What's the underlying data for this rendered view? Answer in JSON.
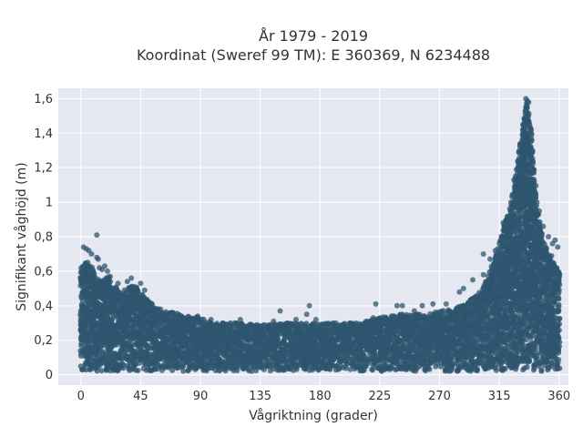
{
  "chart_data": {
    "type": "scatter",
    "title": [
      "År 1979 - 2019",
      "Koordinat (Sweref 99 TM): E 360369, N 6234488"
    ],
    "xlabel": "Vågriktning (grader)",
    "ylabel": "Signifikant våghöjd (m)",
    "xlim": [
      -17,
      367
    ],
    "ylim": [
      -0.06,
      1.66
    ],
    "xticks": [
      0,
      45,
      90,
      135,
      180,
      225,
      270,
      315,
      360
    ],
    "xtick_labels": [
      "0",
      "45",
      "90",
      "135",
      "180",
      "225",
      "270",
      "315",
      "360"
    ],
    "yticks": [
      0,
      0.2,
      0.4,
      0.6,
      0.8,
      1.0,
      1.2,
      1.4,
      1.6
    ],
    "ytick_labels": [
      "0",
      "0,2",
      "0,4",
      "0,6",
      "0,8",
      "1",
      "1,2",
      "1,4",
      "1,6"
    ],
    "grid": true,
    "marker_color": "#2f5570",
    "background_color": "#e5e8f0",
    "envelope": {
      "direction": [
        0,
        5,
        10,
        15,
        20,
        25,
        30,
        35,
        40,
        45,
        50,
        55,
        60,
        70,
        80,
        90,
        100,
        110,
        120,
        130,
        140,
        150,
        160,
        170,
        180,
        190,
        200,
        210,
        220,
        230,
        240,
        250,
        260,
        270,
        280,
        290,
        300,
        305,
        310,
        315,
        320,
        325,
        330,
        333,
        336,
        338,
        340,
        343,
        346,
        350,
        355,
        360
      ],
      "max_height": [
        0.62,
        0.66,
        0.6,
        0.55,
        0.58,
        0.52,
        0.48,
        0.5,
        0.52,
        0.48,
        0.44,
        0.4,
        0.37,
        0.36,
        0.34,
        0.33,
        0.3,
        0.3,
        0.3,
        0.29,
        0.29,
        0.3,
        0.3,
        0.3,
        0.3,
        0.3,
        0.3,
        0.3,
        0.32,
        0.34,
        0.35,
        0.35,
        0.36,
        0.37,
        0.38,
        0.42,
        0.48,
        0.55,
        0.65,
        0.75,
        0.9,
        1.05,
        1.3,
        1.45,
        1.6,
        1.5,
        1.3,
        1.0,
        0.85,
        0.75,
        0.68,
        0.6
      ]
    },
    "outliers": [
      {
        "x": 2,
        "y": 0.74
      },
      {
        "x": 4,
        "y": 0.73
      },
      {
        "x": 6,
        "y": 0.72
      },
      {
        "x": 8,
        "y": 0.7
      },
      {
        "x": 12,
        "y": 0.68
      },
      {
        "x": 13,
        "y": 0.67
      },
      {
        "x": 14,
        "y": 0.62
      },
      {
        "x": 16,
        "y": 0.61
      },
      {
        "x": 18,
        "y": 0.63
      },
      {
        "x": 20,
        "y": 0.6
      },
      {
        "x": 22,
        "y": 0.57
      },
      {
        "x": 28,
        "y": 0.53
      },
      {
        "x": 35,
        "y": 0.54
      },
      {
        "x": 38,
        "y": 0.56
      },
      {
        "x": 45,
        "y": 0.53
      },
      {
        "x": 48,
        "y": 0.49
      },
      {
        "x": 12,
        "y": 0.81
      },
      {
        "x": 60,
        "y": 0.38
      },
      {
        "x": 88,
        "y": 0.34
      },
      {
        "x": 98,
        "y": 0.32
      },
      {
        "x": 120,
        "y": 0.32
      },
      {
        "x": 145,
        "y": 0.31
      },
      {
        "x": 150,
        "y": 0.37
      },
      {
        "x": 162,
        "y": 0.32
      },
      {
        "x": 170,
        "y": 0.35
      },
      {
        "x": 172,
        "y": 0.4
      },
      {
        "x": 177,
        "y": 0.32
      },
      {
        "x": 190,
        "y": 0.3
      },
      {
        "x": 203,
        "y": 0.3
      },
      {
        "x": 220,
        "y": 0.33
      },
      {
        "x": 222,
        "y": 0.41
      },
      {
        "x": 238,
        "y": 0.4
      },
      {
        "x": 242,
        "y": 0.4
      },
      {
        "x": 251,
        "y": 0.37
      },
      {
        "x": 257,
        "y": 0.4
      },
      {
        "x": 265,
        "y": 0.41
      },
      {
        "x": 275,
        "y": 0.41
      },
      {
        "x": 285,
        "y": 0.48
      },
      {
        "x": 288,
        "y": 0.5
      },
      {
        "x": 295,
        "y": 0.55
      },
      {
        "x": 303,
        "y": 0.58
      },
      {
        "x": 303,
        "y": 0.7
      },
      {
        "x": 308,
        "y": 0.67
      },
      {
        "x": 312,
        "y": 0.72
      },
      {
        "x": 315,
        "y": 0.76
      },
      {
        "x": 318,
        "y": 0.88
      },
      {
        "x": 320,
        "y": 0.85
      },
      {
        "x": 322,
        "y": 0.9
      },
      {
        "x": 324,
        "y": 0.86
      },
      {
        "x": 326,
        "y": 1.13
      },
      {
        "x": 327,
        "y": 1.0
      },
      {
        "x": 329,
        "y": 1.2
      },
      {
        "x": 331,
        "y": 1.3
      },
      {
        "x": 333,
        "y": 1.45
      },
      {
        "x": 335,
        "y": 1.6
      },
      {
        "x": 337,
        "y": 1.58
      },
      {
        "x": 339,
        "y": 1.42
      },
      {
        "x": 340,
        "y": 1.3
      },
      {
        "x": 341,
        "y": 1.17
      },
      {
        "x": 342,
        "y": 1.05
      },
      {
        "x": 345,
        "y": 0.95
      },
      {
        "x": 348,
        "y": 0.86
      },
      {
        "x": 352,
        "y": 0.8
      },
      {
        "x": 355,
        "y": 0.76
      },
      {
        "x": 357,
        "y": 0.78
      },
      {
        "x": 359,
        "y": 0.74
      }
    ]
  }
}
